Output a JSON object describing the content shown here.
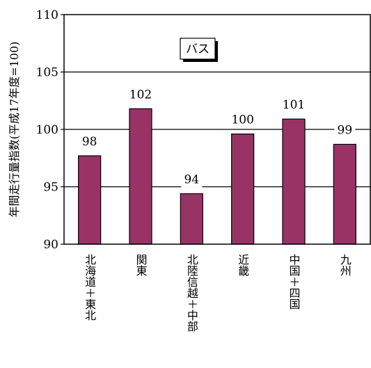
{
  "chart_data": {
    "type": "bar",
    "title": "",
    "ylabel": "年間走行量指数(平成17年度=100)",
    "xlabel": "",
    "ylim": [
      90,
      110
    ],
    "yticks": [
      90,
      95,
      100,
      105,
      110
    ],
    "grid": "horizontal",
    "legend_position": "top-center",
    "series": [
      {
        "name": "バス",
        "color": "#993366",
        "values": [
          97.7,
          101.8,
          94.4,
          99.6,
          100.9,
          98.7
        ],
        "data_labels": [
          "98",
          "102",
          "94",
          "100",
          "101",
          "99"
        ]
      }
    ],
    "categories": [
      "北海道＋東北",
      "関東",
      "北陸信越＋中部",
      "近畿",
      "中国＋四国",
      "九州"
    ]
  }
}
